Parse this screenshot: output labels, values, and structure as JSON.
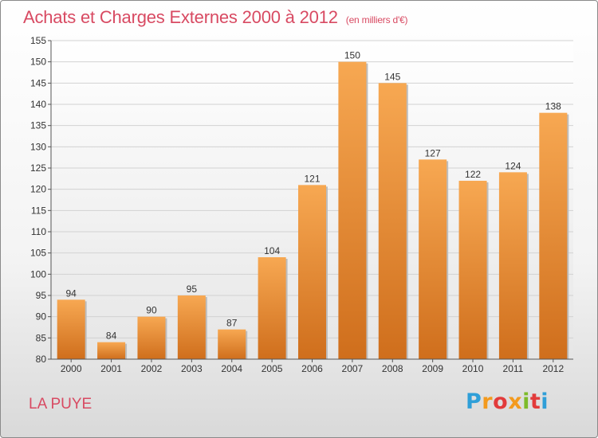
{
  "header": {
    "title": "Achats et Charges Externes 2000 à 2012",
    "subtitle": "(en milliers d'€)"
  },
  "footer": {
    "town": "LA PUYE",
    "logo_letters": [
      "P",
      "r",
      "o",
      "x",
      "i",
      "t",
      "i"
    ],
    "logo_colors": [
      "#2f9fd8",
      "#f39a1e",
      "#e23b3b",
      "#f39a1e",
      "#7dbb2a",
      "#e23b3b",
      "#2f9fd8"
    ]
  },
  "chart_data": {
    "type": "bar",
    "categories": [
      "2000",
      "2001",
      "2002",
      "2003",
      "2004",
      "2005",
      "2006",
      "2007",
      "2008",
      "2009",
      "2010",
      "2011",
      "2012"
    ],
    "values": [
      94,
      84,
      90,
      95,
      87,
      104,
      121,
      150,
      145,
      127,
      122,
      124,
      138
    ],
    "data_labels": [
      "94",
      "84",
      "90",
      "95",
      "87",
      "104",
      "121",
      "150",
      "145",
      "127",
      "122",
      "124",
      "138"
    ],
    "title": "Achats et Charges Externes 2000 à 2012",
    "xlabel": "",
    "ylabel": "",
    "ylim": [
      80,
      155
    ],
    "yticks": [
      80,
      85,
      90,
      95,
      100,
      105,
      110,
      115,
      120,
      125,
      130,
      135,
      140,
      145,
      150,
      155
    ],
    "grid": true,
    "bar_color_top": "#f7a852",
    "bar_color_bottom": "#cf6e1c"
  }
}
